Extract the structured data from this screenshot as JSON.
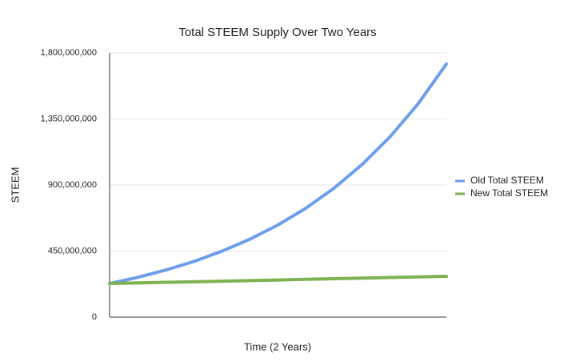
{
  "chart_data": {
    "type": "line",
    "title": "Total STEEM Supply Over Two Years",
    "x_label": "Time (2 Years)",
    "y_label": "STEEM",
    "categories": [
      null,
      null,
      null,
      null,
      null,
      null,
      null,
      null,
      null,
      null,
      null,
      null,
      null
    ],
    "series": [
      {
        "name": "Old Total STEEM",
        "color": "#6d9eeb",
        "values": [
          229000000,
          271000000,
          321000000,
          379000000,
          449000000,
          531000000,
          628000000,
          743000000,
          879000000,
          1040000000,
          1230000000,
          1455000000,
          1724000000
        ]
      },
      {
        "name": "New Total STEEM",
        "color": "#7cb24f",
        "values": [
          229000000,
          233000000,
          237000000,
          241000000,
          245000000,
          249000000,
          253000000,
          258000000,
          262000000,
          266000000,
          270000000,
          274000000,
          278000000
        ]
      }
    ],
    "ylim": [
      0,
      1800000000
    ],
    "yticks": [
      0,
      {
        "value": 450000000,
        "label": "450,000,000"
      },
      {
        "value": 900000000,
        "label": "900,000,000"
      },
      {
        "value": 1350000000,
        "label": "1,350,000,000"
      },
      {
        "value": 1800000000,
        "label": "1,800,000,000"
      }
    ],
    "grid": true,
    "legend": "right"
  }
}
